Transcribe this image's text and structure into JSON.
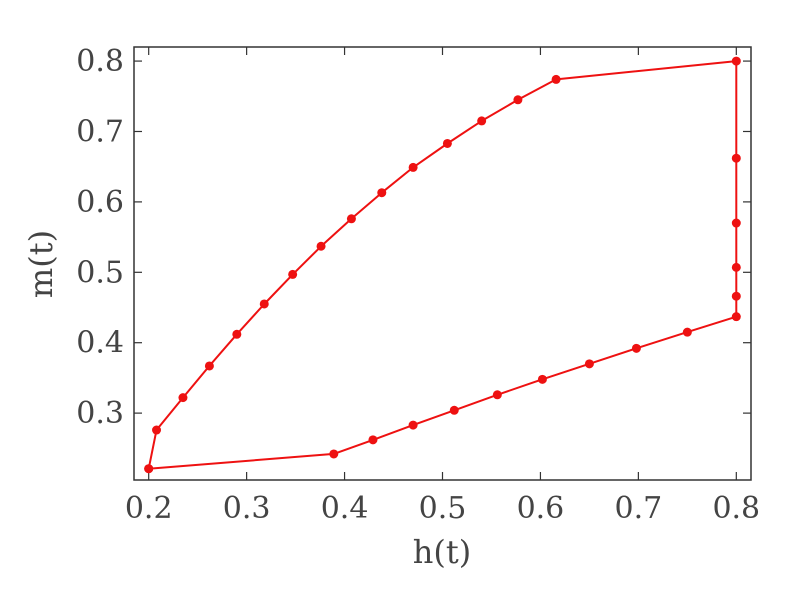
{
  "chart_data": {
    "type": "line",
    "title": "",
    "xlabel": "h(t)",
    "ylabel": "m(t)",
    "xlim": [
      0.185,
      0.815
    ],
    "ylim": [
      0.205,
      0.82
    ],
    "grid": false,
    "x_ticks": [
      0.2,
      0.3,
      0.4,
      0.5,
      0.6,
      0.7,
      0.8
    ],
    "x_tick_labels": [
      "0.2",
      "0.3",
      "0.4",
      "0.5",
      "0.6",
      "0.7",
      "0.8"
    ],
    "y_ticks": [
      0.3,
      0.4,
      0.5,
      0.6,
      0.7,
      0.8
    ],
    "y_tick_labels": [
      "0.3",
      "0.4",
      "0.5",
      "0.6",
      "0.7",
      "0.8"
    ],
    "series": [
      {
        "color": "#ee1111",
        "marker": "circle",
        "points": [
          [
            0.2,
            0.221
          ],
          [
            0.208,
            0.276
          ],
          [
            0.235,
            0.322
          ],
          [
            0.262,
            0.367
          ],
          [
            0.29,
            0.412
          ],
          [
            0.318,
            0.455
          ],
          [
            0.347,
            0.497
          ],
          [
            0.376,
            0.537
          ],
          [
            0.407,
            0.576
          ],
          [
            0.438,
            0.613
          ],
          [
            0.47,
            0.649
          ],
          [
            0.505,
            0.683
          ],
          [
            0.54,
            0.715
          ],
          [
            0.577,
            0.745
          ],
          [
            0.616,
            0.774
          ],
          [
            0.8,
            0.8
          ],
          [
            0.8,
            0.662
          ],
          [
            0.8,
            0.57
          ],
          [
            0.8,
            0.507
          ],
          [
            0.8,
            0.466
          ],
          [
            0.8,
            0.437
          ],
          [
            0.75,
            0.415
          ],
          [
            0.698,
            0.392
          ],
          [
            0.65,
            0.37
          ],
          [
            0.602,
            0.348
          ],
          [
            0.556,
            0.326
          ],
          [
            0.512,
            0.304
          ],
          [
            0.47,
            0.283
          ],
          [
            0.429,
            0.262
          ],
          [
            0.389,
            0.242
          ],
          [
            0.2,
            0.221
          ]
        ]
      }
    ]
  }
}
